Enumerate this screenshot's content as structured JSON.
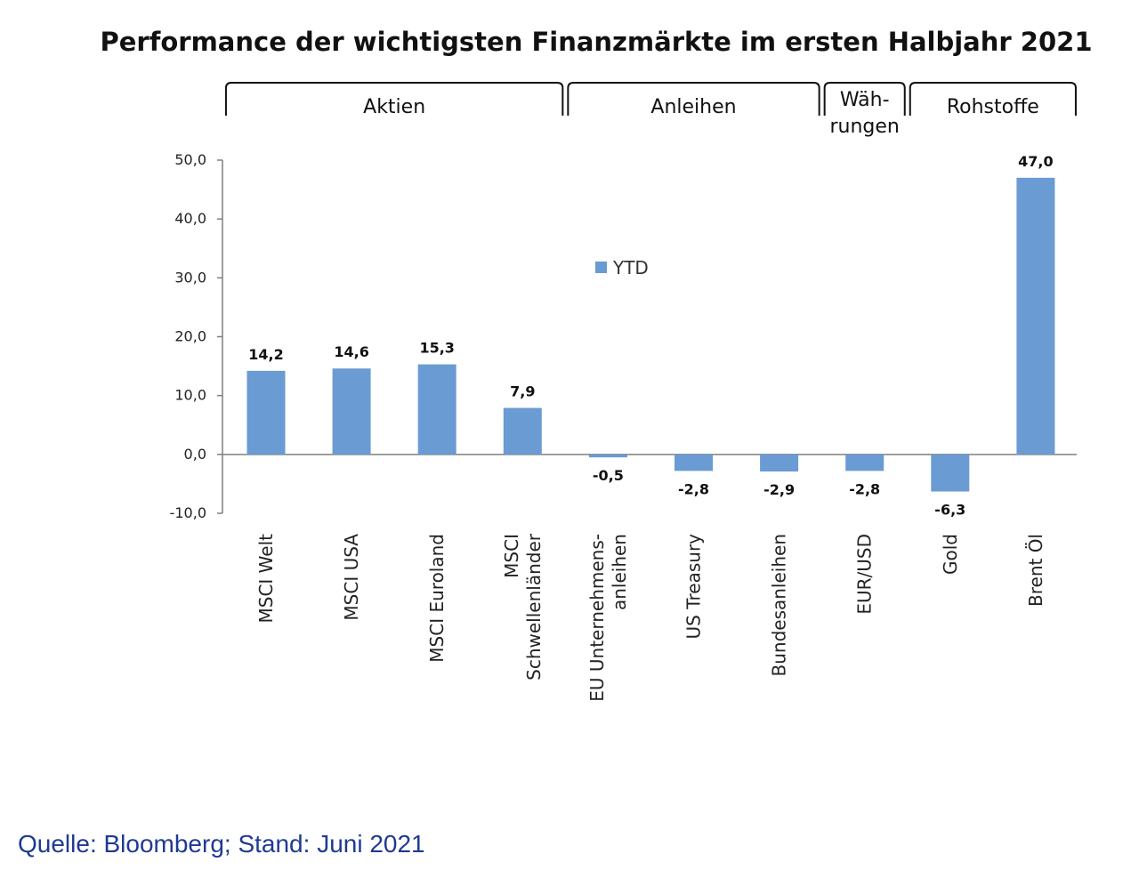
{
  "chart_data": {
    "type": "bar",
    "title": "Performance der wichtigsten Finanzmärkte im ersten Halbjahr 2021",
    "categories": [
      [
        "MSCI Welt"
      ],
      [
        "MSCI USA"
      ],
      [
        "MSCI Euroland"
      ],
      [
        "MSCI",
        "Schwellenländer"
      ],
      [
        "EU Unternehmens-",
        "anleihen"
      ],
      [
        "US Treasury"
      ],
      [
        "Bundesanleihen"
      ],
      [
        "EUR/USD"
      ],
      [
        "Gold"
      ],
      [
        "Brent Öl"
      ]
    ],
    "series": [
      {
        "name": "YTD",
        "values": [
          14.2,
          14.6,
          15.3,
          7.9,
          -0.5,
          -2.8,
          -2.9,
          -2.8,
          -6.3,
          47.0
        ],
        "labels": [
          "14,2",
          "14,6",
          "15,3",
          "7,9",
          "-0,5",
          "-2,8",
          "-2,9",
          "-2,8",
          "-6,3",
          "47,0"
        ],
        "color": "#6a9bd2"
      }
    ],
    "ylim": [
      -10,
      50
    ],
    "yticks": [
      -10,
      0,
      10,
      20,
      30,
      40,
      50
    ],
    "ytick_labels": [
      "-10,0",
      "0,0",
      "10,0",
      "20,0",
      "30,0",
      "40,0",
      "50,0"
    ],
    "groups": [
      {
        "lines": [
          "Aktien"
        ],
        "first": 0,
        "last": 3
      },
      {
        "lines": [
          "Anleihen"
        ],
        "first": 4,
        "last": 6
      },
      {
        "lines": [
          "Wäh-",
          "rungen"
        ],
        "first": 7,
        "last": 7
      },
      {
        "lines": [
          "Rohstoffe"
        ],
        "first": 8,
        "last": 9
      }
    ],
    "legend": {
      "label": "YTD",
      "position": "center-top"
    },
    "grid": false
  },
  "source": "Quelle: Bloomberg; Stand: Juni 2021",
  "colors": {
    "bar": "#6a9bd2",
    "source_text": "#1f3a93",
    "axis": "#7f7f7f"
  }
}
